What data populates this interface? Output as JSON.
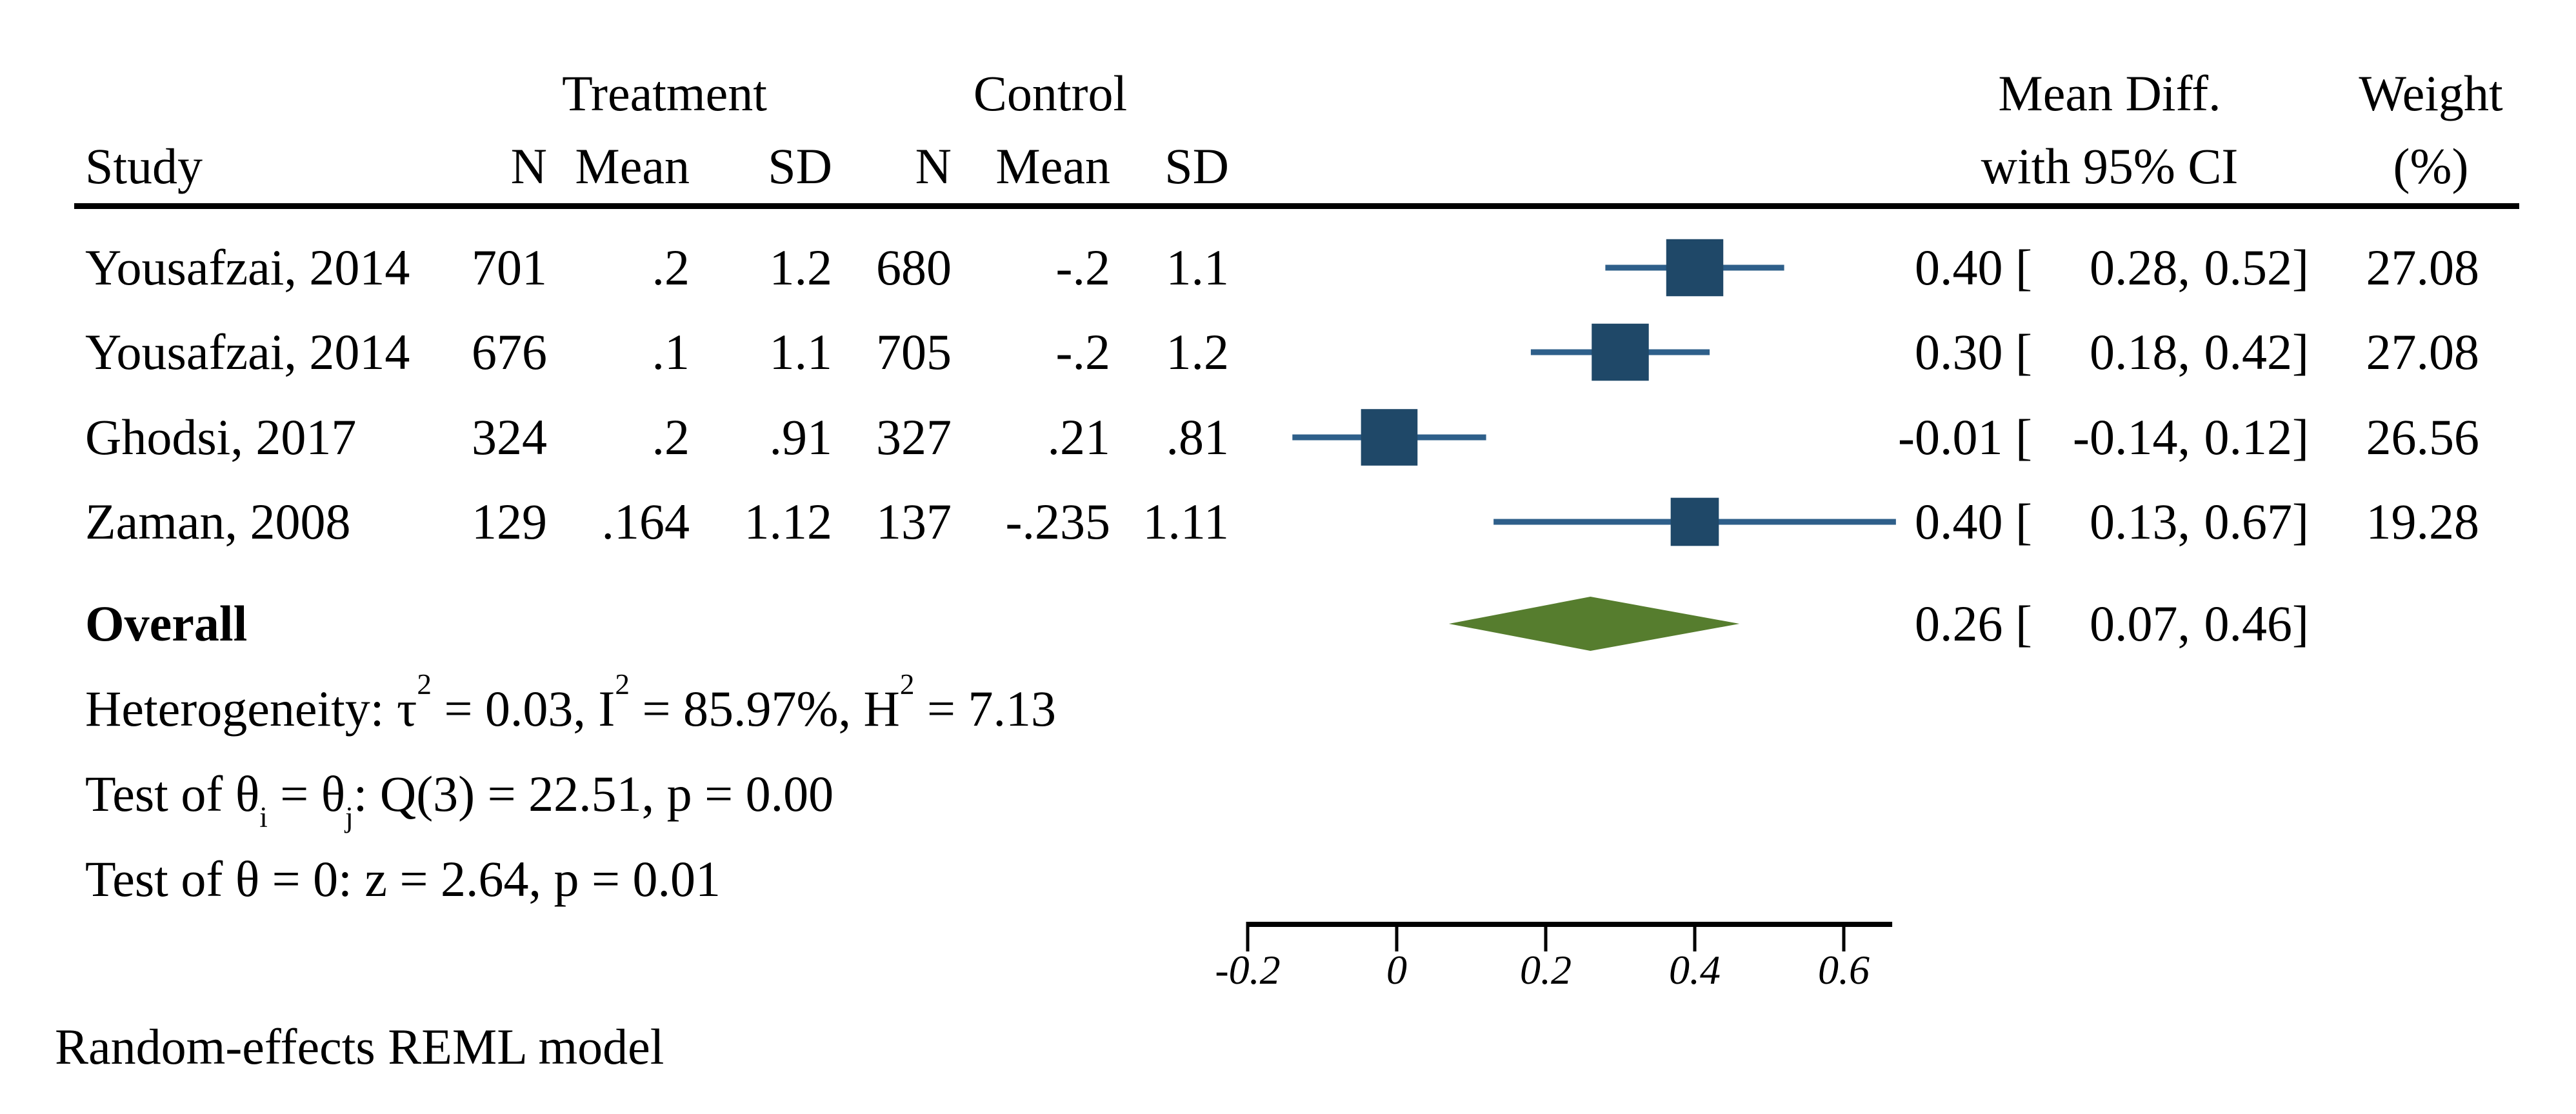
{
  "header": {
    "study": "Study",
    "treatment_group": "Treatment",
    "control_group": "Control",
    "treatment_cols": {
      "n": "N",
      "mean": "Mean",
      "sd": "SD"
    },
    "control_cols": {
      "n": "N",
      "mean": "Mean",
      "sd": "SD"
    },
    "meandiff_line1": "Mean Diff.",
    "meandiff_line2": "with 95% CI",
    "weight_line1": "Weight",
    "weight_line2": "(%)"
  },
  "rows": [
    {
      "study": "Yousafzai, 2014",
      "t_n": "701",
      "t_mean": ".2",
      "t_sd": "1.2",
      "c_n": "680",
      "c_mean": "-.2",
      "c_sd": "1.1",
      "est_text": "0.40 [",
      "lo_text": "0.28,",
      "hi_text": "0.52]",
      "weight": "27.08"
    },
    {
      "study": "Yousafzai, 2014",
      "t_n": "676",
      "t_mean": ".1",
      "t_sd": "1.1",
      "c_n": "705",
      "c_mean": "-.2",
      "c_sd": "1.2",
      "est_text": "0.30 [",
      "lo_text": "0.18,",
      "hi_text": "0.42]",
      "weight": "27.08"
    },
    {
      "study": "Ghodsi, 2017",
      "t_n": "324",
      "t_mean": ".2",
      "t_sd": ".91",
      "c_n": "327",
      "c_mean": ".21",
      "c_sd": ".81",
      "est_text": "-0.01 [",
      "lo_text": "-0.14,",
      "hi_text": "0.12]",
      "weight": "26.56"
    },
    {
      "study": "Zaman, 2008",
      "t_n": "129",
      "t_mean": ".164",
      "t_sd": "1.12",
      "c_n": "137",
      "c_mean": "-.235",
      "c_sd": "1.11",
      "est_text": "0.40 [",
      "lo_text": "0.13,",
      "hi_text": "0.67]",
      "weight": "19.28"
    }
  ],
  "overall": {
    "label": "Overall",
    "est_text": "0.26 [",
    "lo_text": "0.07,",
    "hi_text": "0.46]"
  },
  "stats": {
    "heterogeneity": {
      "pre": "Heterogeneity: τ",
      "sup1": "2",
      "mid1": " = 0.03, I",
      "sup2": "2",
      "mid2": " = 85.97%, H",
      "sup3": "2",
      "post": " = 7.13"
    },
    "test_between": {
      "pre": "Test of θ",
      "sub1": "i",
      "mid1": " = θ",
      "sub2": "j",
      "post": ": Q(3) = 22.51, p = 0.00"
    },
    "test_zero": "Test of θ = 0: z = 2.64, p = 0.01"
  },
  "footer": {
    "note": "Random-effects REML model"
  },
  "chart_data": {
    "type": "forest",
    "effect_measure": "Mean Diff. with 95% CI",
    "x_axis": {
      "ticks": [
        -0.2,
        0,
        0.2,
        0.4,
        0.6
      ],
      "tick_labels": [
        "-0.2",
        "0",
        "0.2",
        "0.4",
        "0.6"
      ],
      "range": [
        -0.2,
        0.665
      ]
    },
    "studies": [
      {
        "name": "Yousafzai, 2014",
        "treatment": {
          "n": 701,
          "mean": 0.2,
          "sd": 1.2
        },
        "control": {
          "n": 680,
          "mean": -0.2,
          "sd": 1.1
        },
        "estimate": 0.4,
        "ci_low": 0.28,
        "ci_high": 0.52,
        "weight_pct": 27.08
      },
      {
        "name": "Yousafzai, 2014",
        "treatment": {
          "n": 676,
          "mean": 0.1,
          "sd": 1.1
        },
        "control": {
          "n": 705,
          "mean": -0.2,
          "sd": 1.2
        },
        "estimate": 0.3,
        "ci_low": 0.18,
        "ci_high": 0.42,
        "weight_pct": 27.08
      },
      {
        "name": "Ghodsi, 2017",
        "treatment": {
          "n": 324,
          "mean": 0.2,
          "sd": 0.91
        },
        "control": {
          "n": 327,
          "mean": 0.21,
          "sd": 0.81
        },
        "estimate": -0.01,
        "ci_low": -0.14,
        "ci_high": 0.12,
        "weight_pct": 26.56
      },
      {
        "name": "Zaman, 2008",
        "treatment": {
          "n": 129,
          "mean": 0.164,
          "sd": 1.12
        },
        "control": {
          "n": 137,
          "mean": -0.235,
          "sd": 1.11
        },
        "estimate": 0.4,
        "ci_low": 0.13,
        "ci_high": 0.67,
        "weight_pct": 19.28
      }
    ],
    "overall": {
      "estimate": 0.26,
      "ci_low": 0.07,
      "ci_high": 0.46
    },
    "heterogeneity": {
      "tau2": 0.03,
      "I2_pct": 85.97,
      "H2": 7.13
    },
    "test_between": {
      "Q": 22.51,
      "df": 3,
      "p": "0.00"
    },
    "test_zero": {
      "z": 2.64,
      "p": "0.01"
    },
    "model": "Random-effects REML model",
    "colors": {
      "marker": "#1f4868",
      "ci_line": "#2e5f8a",
      "diamond": "#567d2e",
      "axis": "#000000"
    }
  }
}
